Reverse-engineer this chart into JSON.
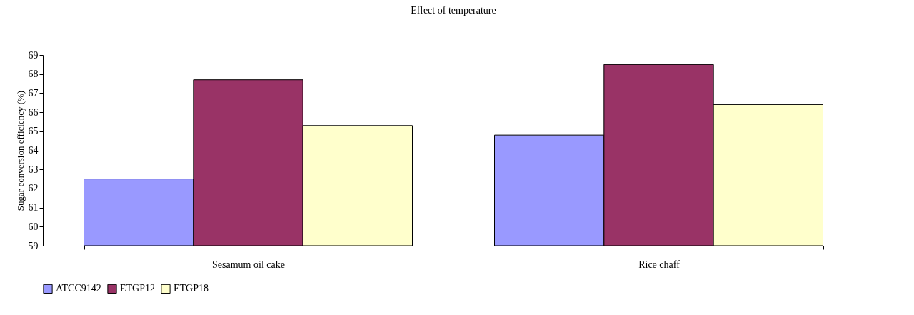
{
  "chart_data": {
    "type": "bar",
    "title": "Effect of temperature",
    "ylabel": "Sugar conversion efficiency (%)",
    "categories": [
      "Sesamum oil cake",
      "Rice chaff"
    ],
    "series": [
      {
        "name": "ATCC9142",
        "color": "#9999ff",
        "values": [
          62.5,
          64.8
        ]
      },
      {
        "name": "ETGP12",
        "color": "#993366",
        "values": [
          67.7,
          68.5
        ]
      },
      {
        "name": "ETGP18",
        "color": "#ffffcc",
        "values": [
          65.3,
          66.4
        ]
      }
    ],
    "ylim": [
      59,
      69
    ],
    "yticks": [
      59,
      60,
      61,
      62,
      63,
      64,
      65,
      66,
      67,
      68,
      69
    ],
    "grid": false,
    "legend": "bottom"
  }
}
